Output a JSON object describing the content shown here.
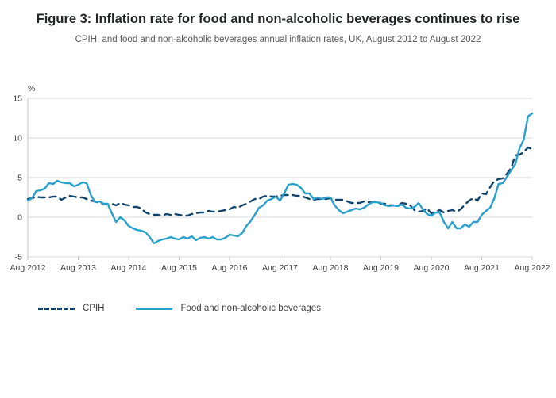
{
  "header": {
    "title": "Figure 3: Inflation rate for food and non-alcoholic beverages continues to rise",
    "subtitle": "CPIH, and food and non-alcoholic beverages annual inflation rates, UK, August 2012 to August 2022"
  },
  "chart_data": {
    "type": "line",
    "title": "Figure 3: Inflation rate for food and non-alcoholic beverages continues to rise",
    "unit_label": "%",
    "ylim": [
      -5,
      15
    ],
    "yticks": [
      -5,
      0,
      5,
      10,
      15
    ],
    "grid": "horizontal",
    "legend_position": "bottom-left",
    "x_tick_labels": [
      "Aug 2012",
      "Aug 2013",
      "Aug 2014",
      "Aug 2015",
      "Aug 2016",
      "Aug 2017",
      "Aug 2018",
      "Aug 2019",
      "Aug 2020",
      "Aug 2021",
      "Aug 2022"
    ],
    "x_frequency": "monthly",
    "x_range": "August 2012 to August 2022",
    "series": [
      {
        "name": "CPIH",
        "color": "#12436D",
        "style": "dashed",
        "values": [
          2.3,
          2.4,
          2.6,
          2.5,
          2.5,
          2.5,
          2.6,
          2.6,
          2.2,
          2.5,
          2.7,
          2.6,
          2.5,
          2.5,
          2.3,
          2.1,
          2.0,
          1.8,
          1.7,
          1.6,
          1.7,
          1.5,
          1.8,
          1.6,
          1.5,
          1.3,
          1.3,
          1.1,
          0.6,
          0.4,
          0.3,
          0.3,
          0.2,
          0.4,
          0.3,
          0.4,
          0.3,
          0.2,
          0.2,
          0.4,
          0.5,
          0.6,
          0.6,
          0.8,
          0.7,
          0.7,
          0.8,
          0.9,
          1.0,
          1.3,
          1.2,
          1.5,
          1.7,
          2.0,
          2.3,
          2.3,
          2.6,
          2.7,
          2.6,
          2.6,
          2.7,
          2.8,
          2.8,
          2.8,
          2.7,
          2.7,
          2.5,
          2.3,
          2.2,
          2.3,
          2.3,
          2.3,
          2.4,
          2.2,
          2.2,
          2.2,
          2.0,
          1.8,
          1.8,
          1.8,
          2.0,
          1.9,
          1.9,
          2.0,
          1.7,
          1.7,
          1.5,
          1.5,
          1.4,
          1.8,
          1.7,
          1.5,
          0.9,
          0.7,
          0.8,
          1.1,
          0.5,
          0.7,
          0.9,
          0.6,
          0.8,
          0.9,
          0.7,
          1.0,
          1.6,
          2.1,
          2.4,
          2.1,
          3.0,
          2.9,
          3.8,
          4.6,
          4.8,
          4.9,
          5.5,
          6.2,
          7.8,
          7.9,
          8.2,
          8.8,
          8.6
        ]
      },
      {
        "name": "Food and non-alcoholic beverages",
        "color": "#27A0CC",
        "style": "solid",
        "values": [
          2.1,
          2.4,
          3.3,
          3.4,
          3.6,
          4.3,
          4.2,
          4.6,
          4.4,
          4.3,
          4.3,
          3.9,
          4.1,
          4.4,
          4.3,
          2.8,
          1.9,
          2.0,
          1.7,
          1.7,
          0.5,
          -0.6,
          0.0,
          -0.4,
          -1.1,
          -1.4,
          -1.6,
          -1.7,
          -1.9,
          -2.5,
          -3.3,
          -3.0,
          -2.8,
          -2.7,
          -2.5,
          -2.7,
          -2.8,
          -2.5,
          -2.7,
          -2.4,
          -2.9,
          -2.6,
          -2.5,
          -2.7,
          -2.5,
          -2.8,
          -2.8,
          -2.6,
          -2.2,
          -2.3,
          -2.4,
          -2.0,
          -1.1,
          -0.5,
          0.3,
          1.2,
          1.5,
          2.1,
          2.3,
          2.6,
          2.1,
          3.0,
          4.1,
          4.2,
          4.1,
          3.7,
          3.0,
          3.0,
          2.3,
          2.5,
          2.3,
          2.5,
          2.5,
          1.5,
          0.9,
          0.5,
          0.7,
          0.9,
          1.1,
          1.0,
          1.2,
          1.6,
          1.9,
          1.9,
          1.8,
          1.5,
          1.4,
          1.5,
          1.4,
          1.6,
          1.2,
          1.1,
          1.3,
          1.8,
          1.0,
          0.4,
          0.2,
          0.6,
          0.6,
          -0.6,
          -1.4,
          -0.6,
          -1.4,
          -1.4,
          -0.9,
          -1.2,
          -0.6,
          -0.6,
          0.3,
          0.8,
          1.2,
          2.4,
          4.2,
          4.3,
          5.1,
          5.9,
          6.7,
          8.7,
          9.8,
          12.7,
          13.1
        ]
      }
    ]
  }
}
